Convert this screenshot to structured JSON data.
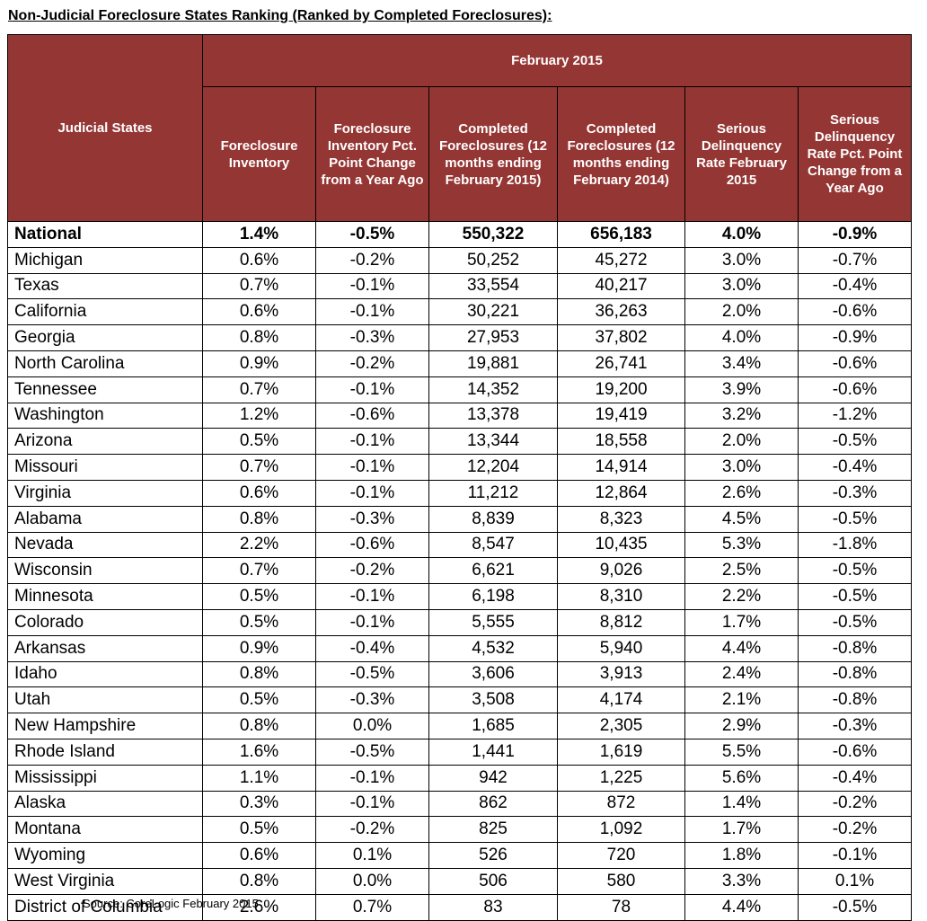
{
  "title": "Non-Judicial Foreclosure States Ranking (Ranked by Completed Foreclosures):",
  "table": {
    "group_header": "February 2015",
    "columns": [
      "Judicial States",
      "Foreclosure Inventory",
      "Foreclosure Inventory Pct. Point Change from a Year Ago",
      "Completed Foreclosures (12 months ending February 2015)",
      "Completed Foreclosures (12 months ending February 2014)",
      "Serious Delinquency Rate February 2015",
      "Serious Delinquency Rate Pct. Point Change from a Year Ago"
    ],
    "rows": [
      [
        "National",
        "1.4%",
        "-0.5%",
        "550,322",
        "656,183",
        "4.0%",
        "-0.9%"
      ],
      [
        "Michigan",
        "0.6%",
        "-0.2%",
        "50,252",
        "45,272",
        "3.0%",
        "-0.7%"
      ],
      [
        "Texas",
        "0.7%",
        "-0.1%",
        "33,554",
        "40,217",
        "3.0%",
        "-0.4%"
      ],
      [
        "California",
        "0.6%",
        "-0.1%",
        "30,221",
        "36,263",
        "2.0%",
        "-0.6%"
      ],
      [
        "Georgia",
        "0.8%",
        "-0.3%",
        "27,953",
        "37,802",
        "4.0%",
        "-0.9%"
      ],
      [
        "North Carolina",
        "0.9%",
        "-0.2%",
        "19,881",
        "26,741",
        "3.4%",
        "-0.6%"
      ],
      [
        "Tennessee",
        "0.7%",
        "-0.1%",
        "14,352",
        "19,200",
        "3.9%",
        "-0.6%"
      ],
      [
        "Washington",
        "1.2%",
        "-0.6%",
        "13,378",
        "19,419",
        "3.2%",
        "-1.2%"
      ],
      [
        "Arizona",
        "0.5%",
        "-0.1%",
        "13,344",
        "18,558",
        "2.0%",
        "-0.5%"
      ],
      [
        "Missouri",
        "0.7%",
        "-0.1%",
        "12,204",
        "14,914",
        "3.0%",
        "-0.4%"
      ],
      [
        "Virginia",
        "0.6%",
        "-0.1%",
        "11,212",
        "12,864",
        "2.6%",
        "-0.3%"
      ],
      [
        "Alabama",
        "0.8%",
        "-0.3%",
        "8,839",
        "8,323",
        "4.5%",
        "-0.5%"
      ],
      [
        "Nevada",
        "2.2%",
        "-0.6%",
        "8,547",
        "10,435",
        "5.3%",
        "-1.8%"
      ],
      [
        "Wisconsin",
        "0.7%",
        "-0.2%",
        "6,621",
        "9,026",
        "2.5%",
        "-0.5%"
      ],
      [
        "Minnesota",
        "0.5%",
        "-0.1%",
        "6,198",
        "8,310",
        "2.2%",
        "-0.5%"
      ],
      [
        "Colorado",
        "0.5%",
        "-0.1%",
        "5,555",
        "8,812",
        "1.7%",
        "-0.5%"
      ],
      [
        "Arkansas",
        "0.9%",
        "-0.4%",
        "4,532",
        "5,940",
        "4.4%",
        "-0.8%"
      ],
      [
        "Idaho",
        "0.8%",
        "-0.5%",
        "3,606",
        "3,913",
        "2.4%",
        "-0.8%"
      ],
      [
        "Utah",
        "0.5%",
        "-0.3%",
        "3,508",
        "4,174",
        "2.1%",
        "-0.8%"
      ],
      [
        "New Hampshire",
        "0.8%",
        "0.0%",
        "1,685",
        "2,305",
        "2.9%",
        "-0.3%"
      ],
      [
        "Rhode Island",
        "1.6%",
        "-0.5%",
        "1,441",
        "1,619",
        "5.5%",
        "-0.6%"
      ],
      [
        "Mississippi",
        "1.1%",
        "-0.1%",
        "942",
        "1,225",
        "5.6%",
        "-0.4%"
      ],
      [
        "Alaska",
        "0.3%",
        "-0.1%",
        "862",
        "872",
        "1.4%",
        "-0.2%"
      ],
      [
        "Montana",
        "0.5%",
        "-0.2%",
        "825",
        "1,092",
        "1.7%",
        "-0.2%"
      ],
      [
        "Wyoming",
        "0.6%",
        "0.1%",
        "526",
        "720",
        "1.8%",
        "-0.1%"
      ],
      [
        "West Virginia",
        "0.8%",
        "0.0%",
        "506",
        "580",
        "3.3%",
        "0.1%"
      ],
      [
        "District of Columbia",
        "2.6%",
        "0.7%",
        "83",
        "78",
        "4.4%",
        "-0.5%"
      ]
    ]
  },
  "source": "Source: CoreLogic February 2015"
}
